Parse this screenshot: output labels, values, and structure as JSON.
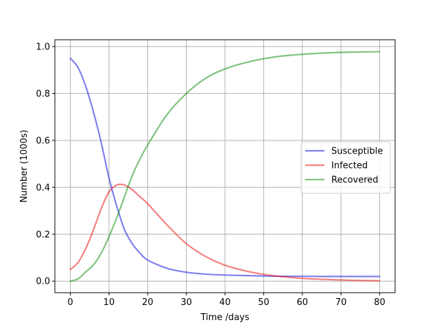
{
  "chart_data": {
    "type": "line",
    "title": "",
    "xlabel": "Time /days",
    "ylabel": "Number (1000s)",
    "xlim": [
      -4,
      84
    ],
    "ylim": [
      -0.049,
      1.029
    ],
    "xticks": [
      0,
      10,
      20,
      30,
      40,
      50,
      60,
      70,
      80
    ],
    "yticks": [
      0.0,
      0.2,
      0.4,
      0.6,
      0.8,
      1.0
    ],
    "xtick_labels": [
      "0",
      "10",
      "20",
      "30",
      "40",
      "50",
      "60",
      "70",
      "80"
    ],
    "ytick_labels": [
      "0.0",
      "0.2",
      "0.4",
      "0.6",
      "0.8",
      "1.0"
    ],
    "grid": true,
    "legend": "center-right",
    "x": [
      0,
      2,
      4,
      6,
      8,
      10,
      12,
      14,
      16,
      18,
      20,
      25,
      30,
      35,
      40,
      45,
      50,
      55,
      60,
      65,
      70,
      75,
      80
    ],
    "series": [
      {
        "name": "Susceptible",
        "color": "#0000dd",
        "values": [
          0.95,
          0.91,
          0.83,
          0.72,
          0.59,
          0.44,
          0.32,
          0.22,
          0.16,
          0.12,
          0.09,
          0.055,
          0.038,
          0.03,
          0.026,
          0.024,
          0.022,
          0.021,
          0.021,
          0.02,
          0.02,
          0.02,
          0.02
        ]
      },
      {
        "name": "Infected",
        "color": "#ee0000",
        "values": [
          0.05,
          0.08,
          0.14,
          0.22,
          0.31,
          0.38,
          0.41,
          0.41,
          0.39,
          0.36,
          0.33,
          0.24,
          0.16,
          0.105,
          0.068,
          0.045,
          0.029,
          0.019,
          0.012,
          0.008,
          0.005,
          0.003,
          0.002
        ]
      },
      {
        "name": "Recovered",
        "color": "#008800",
        "values": [
          0.0,
          0.01,
          0.04,
          0.07,
          0.12,
          0.19,
          0.27,
          0.36,
          0.45,
          0.52,
          0.58,
          0.71,
          0.8,
          0.865,
          0.905,
          0.93,
          0.948,
          0.96,
          0.967,
          0.972,
          0.975,
          0.977,
          0.978
        ]
      }
    ]
  }
}
